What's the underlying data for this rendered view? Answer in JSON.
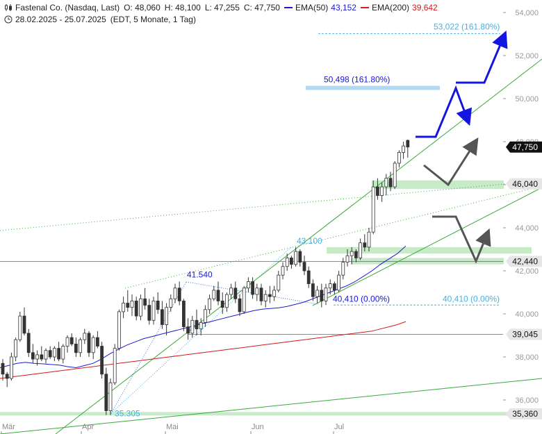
{
  "header": {
    "title": "Fastenal Co. (Nasdaq, Last)",
    "open": "O: 48,060",
    "high": "H: 48,100",
    "low": "L: 47,255",
    "close": "C: 47,750",
    "ema50_label": "EMA(50)",
    "ema50_value": "43,152",
    "ema200_label": "EMA(200)",
    "ema200_value": "39,642",
    "date_range": "28.02.2025 - 25.07.2025",
    "meta": "(EDT, 5 Monate, 1 Tag)"
  },
  "colors": {
    "candle": "#333333",
    "ema50": "#1a1ad0",
    "ema200": "#d11a1a",
    "trend": "#3aa83a",
    "zone": "#b8e6b8",
    "fib_text": "#4ab0e0",
    "projection": "#1515e0",
    "scenario": "#555555",
    "target_bar": "#b3d9f2"
  },
  "chart_data": {
    "type": "candlestick",
    "title": "Fastenal Co. (Nasdaq, Last)",
    "x_labels": [
      "Mär",
      "Apr",
      "Mai",
      "Jun",
      "Jul"
    ],
    "y_ticks": [
      36000,
      38000,
      40000,
      42000,
      44000,
      46000,
      48000,
      50000,
      52000,
      54000
    ],
    "y_tick_labels": [
      "36,000",
      "38,000",
      "40,000",
      "42,000",
      "44,000",
      "46,000",
      "48,000",
      "50,000",
      "52,000",
      "54,000"
    ],
    "ylim": [
      34600,
      54700
    ],
    "right_price_labels": [
      {
        "value": 47750,
        "label": "47,750",
        "style": "dark"
      },
      {
        "value": 46040,
        "label": "46,040",
        "style": "light"
      },
      {
        "value": 42440,
        "label": "42,440",
        "style": "light"
      },
      {
        "value": 39045,
        "label": "39,045",
        "style": "light"
      },
      {
        "value": 35360,
        "label": "35,360",
        "style": "light"
      }
    ],
    "annotations": [
      {
        "text": "53,022 (161.80%)",
        "value": 53022,
        "color": "fib_text"
      },
      {
        "text": "50,498 (161.80%)",
        "value": 50498,
        "color": "projection"
      },
      {
        "text": "43.100",
        "value": 43100,
        "color": "fib_text"
      },
      {
        "text": "41.540",
        "value": 41540,
        "color": "projection"
      },
      {
        "text": "40,410 (0.00%)",
        "value": 40410,
        "color": "projection"
      },
      {
        "text": "40,410 (0.00%)",
        "value": 40410,
        "color": "fib_text"
      },
      {
        "text": "35.305",
        "value": 35305,
        "color": "fib_text"
      }
    ],
    "horizontal_lines": [
      42440,
      39045
    ],
    "support_zones": [
      [
        45800,
        46200
      ],
      [
        42300,
        42600
      ],
      [
        42800,
        43100
      ],
      [
        35280,
        35440
      ]
    ],
    "candles": [
      [
        37700,
        37900,
        36900,
        37200
      ],
      [
        37200,
        37300,
        36600,
        37000
      ],
      [
        37000,
        38200,
        36900,
        38000
      ],
      [
        38000,
        38900,
        37800,
        38800
      ],
      [
        38800,
        40100,
        38700,
        39900
      ],
      [
        39900,
        40300,
        39000,
        39100
      ],
      [
        39100,
        39300,
        38000,
        38200
      ],
      [
        38200,
        38600,
        37700,
        37900
      ],
      [
        37900,
        38300,
        37600,
        38100
      ],
      [
        38100,
        38500,
        37800,
        37900
      ],
      [
        37900,
        38400,
        37700,
        38300
      ],
      [
        38300,
        38500,
        37900,
        38000
      ],
      [
        38000,
        38500,
        37800,
        38400
      ],
      [
        38400,
        38700,
        37800,
        37900
      ],
      [
        37900,
        38600,
        37700,
        38500
      ],
      [
        38500,
        39000,
        38200,
        38900
      ],
      [
        38900,
        39100,
        38500,
        38600
      ],
      [
        38600,
        38900,
        38000,
        38200
      ],
      [
        38200,
        38900,
        38000,
        38800
      ],
      [
        38800,
        39300,
        38600,
        39100
      ],
      [
        39100,
        39200,
        38000,
        38200
      ],
      [
        38200,
        39000,
        37900,
        38900
      ],
      [
        38900,
        39200,
        38400,
        38500
      ],
      [
        38500,
        38700,
        37000,
        37200
      ],
      [
        37200,
        37500,
        35300,
        35500
      ],
      [
        35500,
        37000,
        35300,
        36800
      ],
      [
        36800,
        38600,
        36700,
        38400
      ],
      [
        38400,
        40200,
        38300,
        40100
      ],
      [
        40100,
        40800,
        39800,
        40500
      ],
      [
        40500,
        41100,
        40100,
        40300
      ],
      [
        40300,
        40900,
        39900,
        40600
      ],
      [
        40600,
        40800,
        39700,
        39900
      ],
      [
        39900,
        40900,
        39700,
        40700
      ],
      [
        40700,
        41200,
        40200,
        40400
      ],
      [
        40400,
        40700,
        39500,
        39700
      ],
      [
        39700,
        40800,
        39500,
        40600
      ],
      [
        40600,
        41000,
        40000,
        40200
      ],
      [
        40200,
        40600,
        39300,
        39500
      ],
      [
        39500,
        40500,
        39000,
        40300
      ],
      [
        40300,
        40900,
        40100,
        40700
      ],
      [
        40700,
        41400,
        40500,
        41200
      ],
      [
        41200,
        41500,
        40400,
        40600
      ],
      [
        40600,
        40700,
        39200,
        39400
      ],
      [
        39400,
        39800,
        38800,
        39100
      ],
      [
        39100,
        39900,
        38900,
        39700
      ],
      [
        39700,
        40200,
        39000,
        39300
      ],
      [
        39300,
        39800,
        39000,
        39600
      ],
      [
        39600,
        40400,
        39400,
        40200
      ],
      [
        40200,
        40900,
        40000,
        40700
      ],
      [
        40700,
        41300,
        40600,
        41100
      ],
      [
        41100,
        41500,
        40400,
        40600
      ],
      [
        40600,
        41000,
        40000,
        40300
      ],
      [
        40300,
        41000,
        40100,
        40900
      ],
      [
        40900,
        41400,
        40700,
        41200
      ],
      [
        41200,
        41500,
        40500,
        40700
      ],
      [
        40700,
        40900,
        39900,
        40100
      ],
      [
        40100,
        41300,
        40000,
        41200
      ],
      [
        41200,
        41700,
        41000,
        41500
      ],
      [
        41500,
        41700,
        40700,
        40900
      ],
      [
        40900,
        41400,
        40600,
        41200
      ],
      [
        41200,
        41400,
        40400,
        40600
      ],
      [
        40600,
        41100,
        40300,
        40900
      ],
      [
        40900,
        41300,
        40500,
        40800
      ],
      [
        40800,
        41300,
        40600,
        41100
      ],
      [
        41100,
        42000,
        41000,
        41800
      ],
      [
        41800,
        42400,
        41600,
        42200
      ],
      [
        42200,
        42800,
        42000,
        42600
      ],
      [
        42600,
        42700,
        42100,
        42300
      ],
      [
        42300,
        43100,
        42200,
        42900
      ],
      [
        42900,
        43000,
        42200,
        42400
      ],
      [
        42400,
        42700,
        41800,
        42000
      ],
      [
        42000,
        42200,
        41200,
        41400
      ],
      [
        41400,
        41600,
        40600,
        40800
      ],
      [
        40800,
        41300,
        40500,
        41100
      ],
      [
        41100,
        41400,
        40300,
        40600
      ],
      [
        40600,
        41400,
        40410,
        41200
      ],
      [
        41200,
        41600,
        40900,
        41400
      ],
      [
        41400,
        41500,
        40900,
        41100
      ],
      [
        41100,
        42000,
        41000,
        41800
      ],
      [
        41800,
        42600,
        41600,
        42400
      ],
      [
        42400,
        43000,
        42200,
        42700
      ],
      [
        42700,
        43100,
        42300,
        42900
      ],
      [
        42900,
        43000,
        42400,
        42600
      ],
      [
        42600,
        43500,
        42500,
        43300
      ],
      [
        43300,
        43700,
        42900,
        43100
      ],
      [
        43100,
        44000,
        42900,
        43800
      ],
      [
        43800,
        46200,
        43700,
        45900
      ],
      [
        45900,
        46300,
        45300,
        45500
      ],
      [
        45500,
        46100,
        45200,
        45900
      ],
      [
        45900,
        46500,
        45500,
        46300
      ],
      [
        46300,
        46600,
        45700,
        45900
      ],
      [
        45900,
        47100,
        45800,
        47000
      ],
      [
        47000,
        47600,
        46800,
        47500
      ],
      [
        47500,
        48000,
        47200,
        47800
      ],
      [
        48060,
        48100,
        47255,
        47750
      ]
    ],
    "ema50": [
      37500,
      37600,
      37700,
      37750,
      37700,
      37680,
      37650,
      37620,
      37550,
      37500,
      37600,
      37700,
      37900,
      38150,
      38350,
      38550,
      38700,
      38850,
      38950,
      39050,
      39150,
      39250,
      39350,
      39450,
      39550,
      39650,
      39750,
      39850,
      39950,
      40050,
      40150,
      40220,
      40250,
      40280,
      40350,
      40450,
      40550,
      40700,
      40850,
      41000,
      41150,
      41300,
      41500,
      41750,
      42000,
      42300,
      42550,
      42800,
      43152
    ],
    "ema200": [
      37000,
      37050,
      37100,
      37150,
      37200,
      37250,
      37300,
      37350,
      37400,
      37450,
      37500,
      37550,
      37600,
      37650,
      37700,
      37750,
      37800,
      37850,
      37900,
      37950,
      38000,
      38050,
      38100,
      38150,
      38200,
      38250,
      38300,
      38350,
      38400,
      38450,
      38500,
      38550,
      38600,
      38650,
      38700,
      38750,
      38800,
      38850,
      38900,
      38950,
      39000,
      39050,
      39100,
      39150,
      39200,
      39300,
      39400,
      39500,
      39642
    ]
  }
}
